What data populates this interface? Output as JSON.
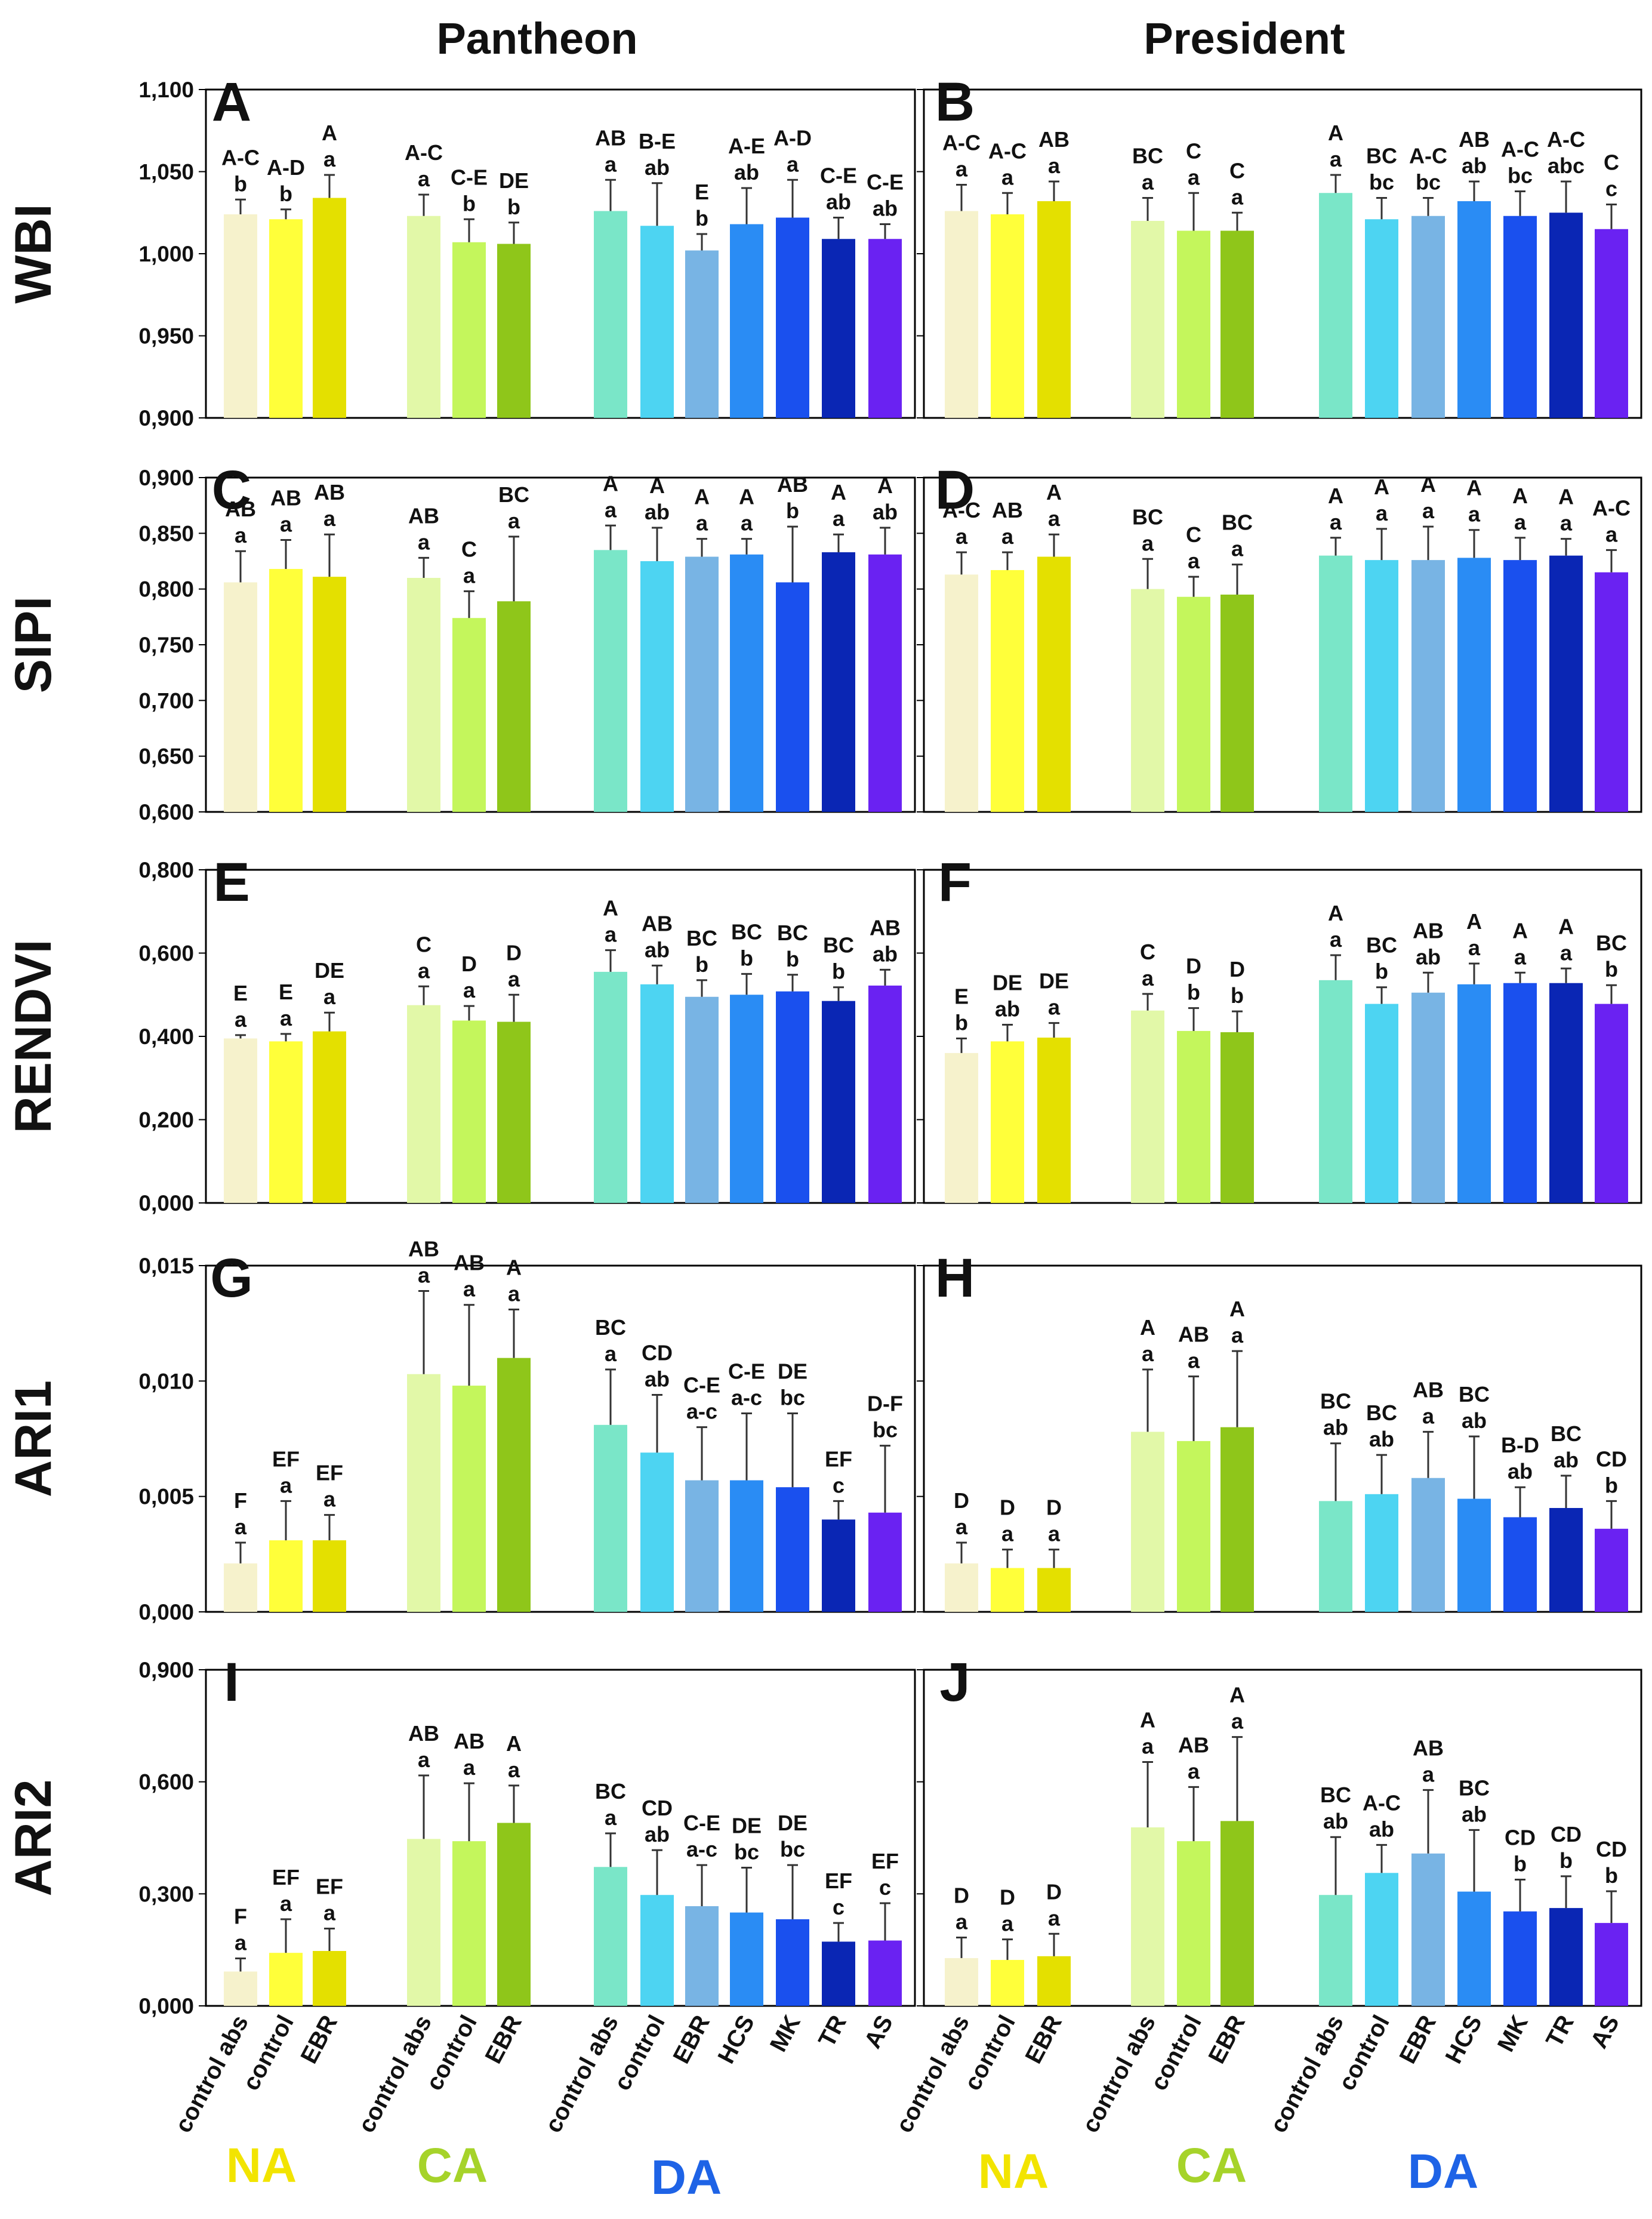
{
  "column_titles": [
    "Pantheon",
    "President"
  ],
  "categories": [
    "control abs",
    "control",
    "EBR",
    "control abs",
    "control",
    "EBR",
    "control abs",
    "control",
    "EBR",
    "HCS",
    "MK",
    "TR",
    "AS"
  ],
  "groups": [
    {
      "label": "NA",
      "color": "#f2e400"
    },
    {
      "label": "CA",
      "color": "#a6d32a"
    },
    {
      "label": "DA",
      "color": "#1e63e6"
    }
  ],
  "bar_colors": [
    "#f6f2cc",
    "#ffff3a",
    "#e4e000",
    "#e2f8a8",
    "#c4f65c",
    "#8fc61a",
    "#7ae6c8",
    "#4dd4f2",
    "#78b4e4",
    "#2a8cf4",
    "#1a50ee",
    "#0a26b4",
    "#6a22f2"
  ],
  "chart_data": [
    {
      "type": "bar",
      "panel": "A",
      "cultivar": "Pantheon",
      "ylabel": "WBI",
      "ylim": [
        0.9,
        1.1
      ],
      "yticks": [
        "1,100",
        "1,050",
        "1,000",
        "0,950",
        "0,900"
      ],
      "tickvals": [
        1.1,
        1.05,
        1.0,
        0.95,
        0.9
      ],
      "values": [
        1.024,
        1.021,
        1.034,
        1.023,
        1.007,
        1.006,
        1.026,
        1.017,
        1.002,
        1.018,
        1.022,
        1.009,
        1.009
      ],
      "errors": [
        0.009,
        0.006,
        0.014,
        0.013,
        0.014,
        0.013,
        0.019,
        0.026,
        0.01,
        0.022,
        0.023,
        0.013,
        0.009
      ],
      "upper_letters": [
        "A-C",
        "A-D",
        "A",
        "A-C",
        "C-E",
        "DE",
        "AB",
        "B-E",
        "E",
        "A-E",
        "A-D",
        "C-E",
        "C-E"
      ],
      "lower_letters": [
        "b",
        "b",
        "a",
        "a",
        "b",
        "b",
        "a",
        "ab",
        "b",
        "ab",
        "a",
        "ab",
        "ab"
      ]
    },
    {
      "type": "bar",
      "panel": "B",
      "cultivar": "President",
      "ylabel": "WBI",
      "ylim": [
        0.9,
        1.1
      ],
      "values": [
        1.026,
        1.024,
        1.032,
        1.02,
        1.014,
        1.014,
        1.037,
        1.021,
        1.023,
        1.032,
        1.023,
        1.025,
        1.015
      ],
      "errors": [
        0.016,
        0.013,
        0.012,
        0.014,
        0.023,
        0.011,
        0.011,
        0.013,
        0.011,
        0.012,
        0.015,
        0.019,
        0.015
      ],
      "upper_letters": [
        "A-C",
        "A-C",
        "AB",
        "BC",
        "C",
        "C",
        "A",
        "BC",
        "A-C",
        "AB",
        "A-C",
        "A-C",
        "C"
      ],
      "lower_letters": [
        "a",
        "a",
        "a",
        "a",
        "a",
        "a",
        "a",
        "bc",
        "bc",
        "ab",
        "bc",
        "abc",
        "c"
      ]
    },
    {
      "type": "bar",
      "panel": "C",
      "cultivar": "Pantheon",
      "ylabel": "SIPI",
      "ylim": [
        0.6,
        0.9
      ],
      "yticks": [
        "0,900",
        "0,850",
        "0,800",
        "0,750",
        "0,700",
        "0,650",
        "0,600"
      ],
      "tickvals": [
        0.9,
        0.85,
        0.8,
        0.75,
        0.7,
        0.65,
        0.6
      ],
      "values": [
        0.806,
        0.818,
        0.811,
        0.81,
        0.774,
        0.789,
        0.835,
        0.825,
        0.829,
        0.831,
        0.806,
        0.833,
        0.831
      ],
      "errors": [
        0.028,
        0.026,
        0.038,
        0.018,
        0.024,
        0.058,
        0.022,
        0.03,
        0.016,
        0.014,
        0.05,
        0.016,
        0.024
      ],
      "upper_letters": [
        "AB",
        "AB",
        "AB",
        "AB",
        "C",
        "BC",
        "A",
        "A",
        "A",
        "A",
        "AB",
        "A",
        "A"
      ],
      "lower_letters": [
        "a",
        "a",
        "a",
        "a",
        "a",
        "a",
        "a",
        "ab",
        "a",
        "a",
        "b",
        "a",
        "ab"
      ]
    },
    {
      "type": "bar",
      "panel": "D",
      "cultivar": "President",
      "ylabel": "SIPI",
      "ylim": [
        0.6,
        0.9
      ],
      "values": [
        0.813,
        0.817,
        0.829,
        0.8,
        0.793,
        0.795,
        0.83,
        0.826,
        0.826,
        0.828,
        0.826,
        0.83,
        0.815
      ],
      "errors": [
        0.02,
        0.016,
        0.02,
        0.027,
        0.018,
        0.027,
        0.016,
        0.028,
        0.03,
        0.025,
        0.02,
        0.015,
        0.02
      ],
      "upper_letters": [
        "A-C",
        "AB",
        "A",
        "BC",
        "C",
        "BC",
        "A",
        "A",
        "A",
        "A",
        "A",
        "A",
        "A-C"
      ],
      "lower_letters": [
        "a",
        "a",
        "a",
        "a",
        "a",
        "a",
        "a",
        "a",
        "a",
        "a",
        "a",
        "a",
        "a"
      ]
    },
    {
      "type": "bar",
      "panel": "E",
      "cultivar": "Pantheon",
      "ylabel": "RENDVI",
      "ylim": [
        0,
        0.8
      ],
      "yticks": [
        "0,800",
        "0,600",
        "0,400",
        "0,200",
        "0,000"
      ],
      "tickvals": [
        0.8,
        0.6,
        0.4,
        0.2,
        0.0
      ],
      "values": [
        0.395,
        0.388,
        0.412,
        0.475,
        0.438,
        0.435,
        0.555,
        0.525,
        0.495,
        0.5,
        0.508,
        0.485,
        0.522
      ],
      "errors": [
        0.008,
        0.018,
        0.045,
        0.045,
        0.035,
        0.065,
        0.052,
        0.045,
        0.04,
        0.05,
        0.04,
        0.033,
        0.038
      ],
      "upper_letters": [
        "E",
        "E",
        "DE",
        "C",
        "D",
        "D",
        "A",
        "AB",
        "BC",
        "BC",
        "BC",
        "BC",
        "AB"
      ],
      "lower_letters": [
        "a",
        "a",
        "a",
        "a",
        "a",
        "a",
        "a",
        "ab",
        "b",
        "b",
        "b",
        "b",
        "ab"
      ]
    },
    {
      "type": "bar",
      "panel": "F",
      "cultivar": "President",
      "ylabel": "RENDVI",
      "ylim": [
        0,
        0.8
      ],
      "values": [
        0.36,
        0.388,
        0.397,
        0.462,
        0.413,
        0.41,
        0.535,
        0.478,
        0.505,
        0.525,
        0.528,
        0.528,
        0.478
      ],
      "errors": [
        0.035,
        0.04,
        0.035,
        0.04,
        0.055,
        0.05,
        0.06,
        0.04,
        0.048,
        0.05,
        0.025,
        0.035,
        0.045
      ],
      "upper_letters": [
        "E",
        "DE",
        "DE",
        "C",
        "D",
        "D",
        "A",
        "BC",
        "AB",
        "A",
        "A",
        "A",
        "BC"
      ],
      "lower_letters": [
        "b",
        "ab",
        "a",
        "a",
        "b",
        "b",
        "a",
        "b",
        "ab",
        "a",
        "a",
        "a",
        "b"
      ]
    },
    {
      "type": "bar",
      "panel": "G",
      "cultivar": "Pantheon",
      "ylabel": "ARI1",
      "ylim": [
        0,
        0.015
      ],
      "yticks": [
        "0,015",
        "0,010",
        "0,005",
        "0,000"
      ],
      "tickvals": [
        0.015,
        0.01,
        0.005,
        0.0
      ],
      "values": [
        0.0021,
        0.0031,
        0.0031,
        0.0103,
        0.0098,
        0.011,
        0.0081,
        0.0069,
        0.0057,
        0.0057,
        0.0054,
        0.004,
        0.0043
      ],
      "errors": [
        0.0009,
        0.0017,
        0.0011,
        0.0036,
        0.0035,
        0.0021,
        0.0024,
        0.0025,
        0.0023,
        0.0029,
        0.0032,
        0.0008,
        0.0029
      ],
      "upper_letters": [
        "F",
        "EF",
        "EF",
        "AB",
        "AB",
        "A",
        "BC",
        "CD",
        "C-E",
        "C-E",
        "DE",
        "EF",
        "D-F"
      ],
      "lower_letters": [
        "a",
        "a",
        "a",
        "a",
        "a",
        "a",
        "a",
        "ab",
        "a-c",
        "a-c",
        "bc",
        "c",
        "bc"
      ]
    },
    {
      "type": "bar",
      "panel": "H",
      "cultivar": "President",
      "ylabel": "ARI1",
      "ylim": [
        0,
        0.015
      ],
      "values": [
        0.0021,
        0.0019,
        0.0019,
        0.0078,
        0.0074,
        0.008,
        0.0048,
        0.0051,
        0.0058,
        0.0049,
        0.0041,
        0.0045,
        0.0036
      ],
      "errors": [
        0.0009,
        0.0008,
        0.0008,
        0.0027,
        0.0028,
        0.0033,
        0.0025,
        0.0017,
        0.002,
        0.0027,
        0.0013,
        0.0014,
        0.0012
      ],
      "upper_letters": [
        "D",
        "D",
        "D",
        "A",
        "AB",
        "A",
        "BC",
        "BC",
        "AB",
        "BC",
        "B-D",
        "BC",
        "CD"
      ],
      "lower_letters": [
        "a",
        "a",
        "a",
        "a",
        "a",
        "a",
        "ab",
        "ab",
        "a",
        "ab",
        "ab",
        "ab",
        "b"
      ]
    },
    {
      "type": "bar",
      "panel": "I",
      "cultivar": "Pantheon",
      "ylabel": "ARI2",
      "ylim": [
        0,
        0.9
      ],
      "yticks": [
        "0,900",
        "0,600",
        "0,300",
        "0,000"
      ],
      "tickvals": [
        0.9,
        0.6,
        0.3,
        0.0
      ],
      "values": [
        0.092,
        0.142,
        0.147,
        0.447,
        0.441,
        0.49,
        0.372,
        0.297,
        0.267,
        0.25,
        0.232,
        0.172,
        0.175
      ],
      "errors": [
        0.035,
        0.09,
        0.06,
        0.17,
        0.155,
        0.1,
        0.09,
        0.12,
        0.11,
        0.12,
        0.145,
        0.05,
        0.1
      ],
      "upper_letters": [
        "F",
        "EF",
        "EF",
        "AB",
        "AB",
        "A",
        "BC",
        "CD",
        "C-E",
        "DE",
        "DE",
        "EF",
        "EF"
      ],
      "lower_letters": [
        "a",
        "a",
        "a",
        "a",
        "a",
        "a",
        "a",
        "ab",
        "a-c",
        "bc",
        "bc",
        "c",
        "c"
      ]
    },
    {
      "type": "bar",
      "panel": "J",
      "cultivar": "President",
      "ylabel": "ARI2",
      "ylim": [
        0,
        0.9
      ],
      "values": [
        0.128,
        0.123,
        0.133,
        0.478,
        0.441,
        0.495,
        0.297,
        0.356,
        0.408,
        0.306,
        0.253,
        0.262,
        0.222
      ],
      "errors": [
        0.055,
        0.055,
        0.06,
        0.175,
        0.145,
        0.225,
        0.155,
        0.075,
        0.17,
        0.165,
        0.085,
        0.085,
        0.085
      ],
      "upper_letters": [
        "D",
        "D",
        "D",
        "A",
        "AB",
        "A",
        "BC",
        "A-C",
        "AB",
        "BC",
        "CD",
        "CD",
        "CD"
      ],
      "lower_letters": [
        "a",
        "a",
        "a",
        "a",
        "a",
        "a",
        "ab",
        "ab",
        "a",
        "ab",
        "b",
        "b",
        "b"
      ]
    }
  ]
}
